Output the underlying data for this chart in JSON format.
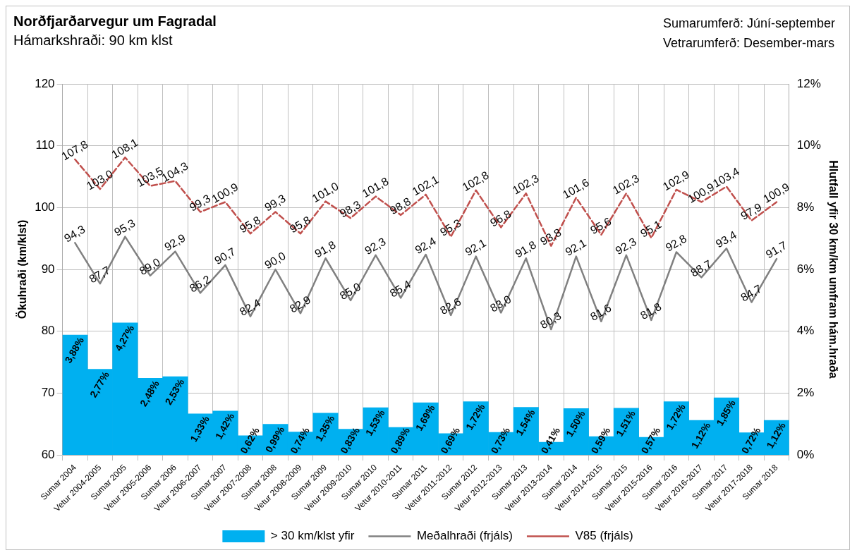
{
  "chart_data": {
    "type": "bar",
    "title": "Norðfjarðarvegur um Fagradal",
    "subtitle": "Hámarkshraði: 90 km klst",
    "ylabel": "Ökuhraði (km/klst)",
    "y2label": "Hlutfall yfir 30 km/km umfram hám.hraða",
    "annotations": [
      "Sumarumferð: Júní-september",
      "Vetrarumferð: Desember-mars"
    ],
    "categories": [
      "Sumar 2004",
      "Vetur 2004-2005",
      "Sumar 2005",
      "Vetur 2005-2006",
      "Sumar 2006",
      "Vetur 2006-2007",
      "Sumar 2007",
      "Vetur 2007-2008",
      "Sumar 2008",
      "Vetur 2008-2009",
      "Sumar 2009",
      "Vetur 2009-2010",
      "Sumar 2010",
      "Vetur 2010-2011",
      "Sumar 2011",
      "Vetur 2011-2012",
      "Sumar 2012",
      "Vetur 2012-2013",
      "Sumar 2013",
      "Vetur 2013-2014",
      "Sumar 2014",
      "Vetur 2014-2015",
      "Sumar 2015",
      "Vetur 2015-2016",
      "Sumar 2016",
      "Vetur 2016-2017",
      "Sumar 2017",
      "Vetur 2017-2018",
      "Sumar 2018"
    ],
    "series": [
      {
        "name": "> 30 km/klst yfir",
        "axis": "y2",
        "color": "#00b0f0",
        "values": [
          3.88,
          2.77,
          4.27,
          2.48,
          2.53,
          1.33,
          1.42,
          0.62,
          0.99,
          0.74,
          1.35,
          0.83,
          1.53,
          0.89,
          1.69,
          0.69,
          1.72,
          0.73,
          1.54,
          0.41,
          1.5,
          0.59,
          1.51,
          0.57,
          1.72,
          1.12,
          1.85,
          0.72,
          1.12
        ],
        "value_labels": [
          "3,88%",
          "2,77%",
          "4,27%",
          "2,48%",
          "2,53%",
          "1,33%",
          "1,42%",
          "0,62%",
          "0,99%",
          "0,74%",
          "1,35%",
          "0,83%",
          "1,53%",
          "0,89%",
          "1,69%",
          "0,69%",
          "1,72%",
          "0,73%",
          "1,54%",
          "0,41%",
          "1,50%",
          "0,59%",
          "1,51%",
          "0,57%",
          "1,72%",
          "1,12%",
          "1,85%",
          "0,72%",
          "1,12%"
        ]
      },
      {
        "name": "Meðalhraði (frjáls)",
        "type": "line",
        "color": "#808080",
        "line_style": "solid",
        "values": [
          94.3,
          87.7,
          95.3,
          89.0,
          92.9,
          86.2,
          90.7,
          82.4,
          90.0,
          82.9,
          91.8,
          85.0,
          92.3,
          85.4,
          92.4,
          82.6,
          92.1,
          83.0,
          91.8,
          80.3,
          92.1,
          81.6,
          92.3,
          81.8,
          92.8,
          88.7,
          93.4,
          84.7,
          91.7
        ],
        "value_labels": [
          "94,3",
          "87,7",
          "95,3",
          "89,0",
          "92,9",
          "86,2",
          "90,7",
          "82,4",
          "90,0",
          "82,9",
          "91,8",
          "85,0",
          "92,3",
          "85,4",
          "92,4",
          "82,6",
          "92,1",
          "83,0",
          "91,8",
          "80,3",
          "92,1",
          "81,6",
          "92,3",
          "81,8",
          "92,8",
          "88,7",
          "93,4",
          "84,7",
          "91,7"
        ]
      },
      {
        "name": "V85 (frjáls)",
        "type": "line",
        "color": "#c0504d",
        "line_style": "dashed",
        "values": [
          107.8,
          103.0,
          108.1,
          103.5,
          104.3,
          99.3,
          100.9,
          95.8,
          99.3,
          95.8,
          101.0,
          98.3,
          101.8,
          98.8,
          102.1,
          95.3,
          102.8,
          96.8,
          102.3,
          93.8,
          101.6,
          95.6,
          102.3,
          95.1,
          102.9,
          100.9,
          103.4,
          97.9,
          100.9
        ],
        "value_labels": [
          "107,8",
          "103,0",
          "108,1",
          "103,5",
          "104,3",
          "99,3",
          "100,9",
          "95,8",
          "99,3",
          "95,8",
          "101,0",
          "98,3",
          "101,8",
          "98,8",
          "102,1",
          "95,3",
          "102,8",
          "96,8",
          "102,3",
          "93,8",
          "101,6",
          "95,6",
          "102,3",
          "95,1",
          "102,9",
          "100,9",
          "103,4",
          "97,9",
          "100,9"
        ]
      }
    ],
    "ylim": [
      60,
      120
    ],
    "yticks": [
      60,
      70,
      80,
      90,
      100,
      110,
      120
    ],
    "y2lim": [
      0,
      12
    ],
    "y2ticks": [
      {
        "value": 0,
        "label": "0%"
      },
      {
        "value": 2,
        "label": "2%"
      },
      {
        "value": 4,
        "label": "4%"
      },
      {
        "value": 6,
        "label": "6%"
      },
      {
        "value": 8,
        "label": "8%"
      },
      {
        "value": 10,
        "label": "10%"
      },
      {
        "value": 12,
        "label": "12%"
      }
    ],
    "grid": true,
    "legend": "bottom",
    "marker": "none"
  }
}
